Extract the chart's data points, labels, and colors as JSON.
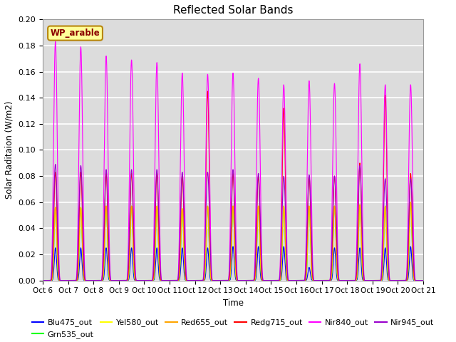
{
  "title": "Reflected Solar Bands",
  "xlabel": "Time",
  "ylabel": "Solar Raditaion (W/m2)",
  "ylim": [
    0,
    0.2
  ],
  "yticks": [
    0.0,
    0.02,
    0.04,
    0.06,
    0.08,
    0.1,
    0.12,
    0.14,
    0.16,
    0.18,
    0.2
  ],
  "xtick_labels": [
    "Oct 6",
    "Oct 7",
    "Oct 8",
    "Oct 9",
    "Oct 10",
    "Oct 11",
    "Oct 12",
    "Oct 13",
    "Oct 14",
    "Oct 15",
    "Oct 16",
    "Oct 17",
    "Oct 18",
    "Oct 19",
    "Oct 20",
    "Oct 21"
  ],
  "annotation_text": "WP_arable",
  "annotation_color": "#8B0000",
  "annotation_bg": "#FFFF99",
  "n_days": 15,
  "samples_per_day": 288,
  "background_color": "#DCDCDC",
  "grid_color": "#FFFFFF",
  "fig_bg": "#FFFFFF",
  "day_peaks_nir840": [
    0.183,
    0.179,
    0.172,
    0.169,
    0.167,
    0.159,
    0.158,
    0.159,
    0.155,
    0.15,
    0.153,
    0.151,
    0.166,
    0.15,
    0.15
  ],
  "day_peaks_nir945": [
    0.089,
    0.088,
    0.085,
    0.085,
    0.085,
    0.083,
    0.083,
    0.085,
    0.082,
    0.08,
    0.081,
    0.08,
    0.088,
    0.078,
    0.078
  ],
  "day_peaks_redg715": [
    0.083,
    0.083,
    0.082,
    0.082,
    0.082,
    0.08,
    0.145,
    0.082,
    0.08,
    0.132,
    0.08,
    0.08,
    0.09,
    0.142,
    0.082
  ],
  "day_peaks_red655": [
    0.056,
    0.056,
    0.057,
    0.057,
    0.057,
    0.055,
    0.057,
    0.057,
    0.057,
    0.057,
    0.057,
    0.057,
    0.058,
    0.057,
    0.06
  ],
  "day_peaks_yel580": [
    0.056,
    0.056,
    0.057,
    0.057,
    0.057,
    0.055,
    0.057,
    0.057,
    0.057,
    0.057,
    0.057,
    0.057,
    0.058,
    0.057,
    0.06
  ],
  "day_peaks_grn535": [
    0.056,
    0.056,
    0.057,
    0.057,
    0.057,
    0.055,
    0.057,
    0.057,
    0.057,
    0.057,
    0.057,
    0.057,
    0.058,
    0.057,
    0.06
  ],
  "day_peaks_blu475": [
    0.025,
    0.025,
    0.025,
    0.025,
    0.025,
    0.025,
    0.025,
    0.026,
    0.026,
    0.026,
    0.01,
    0.025,
    0.025,
    0.025,
    0.026
  ]
}
